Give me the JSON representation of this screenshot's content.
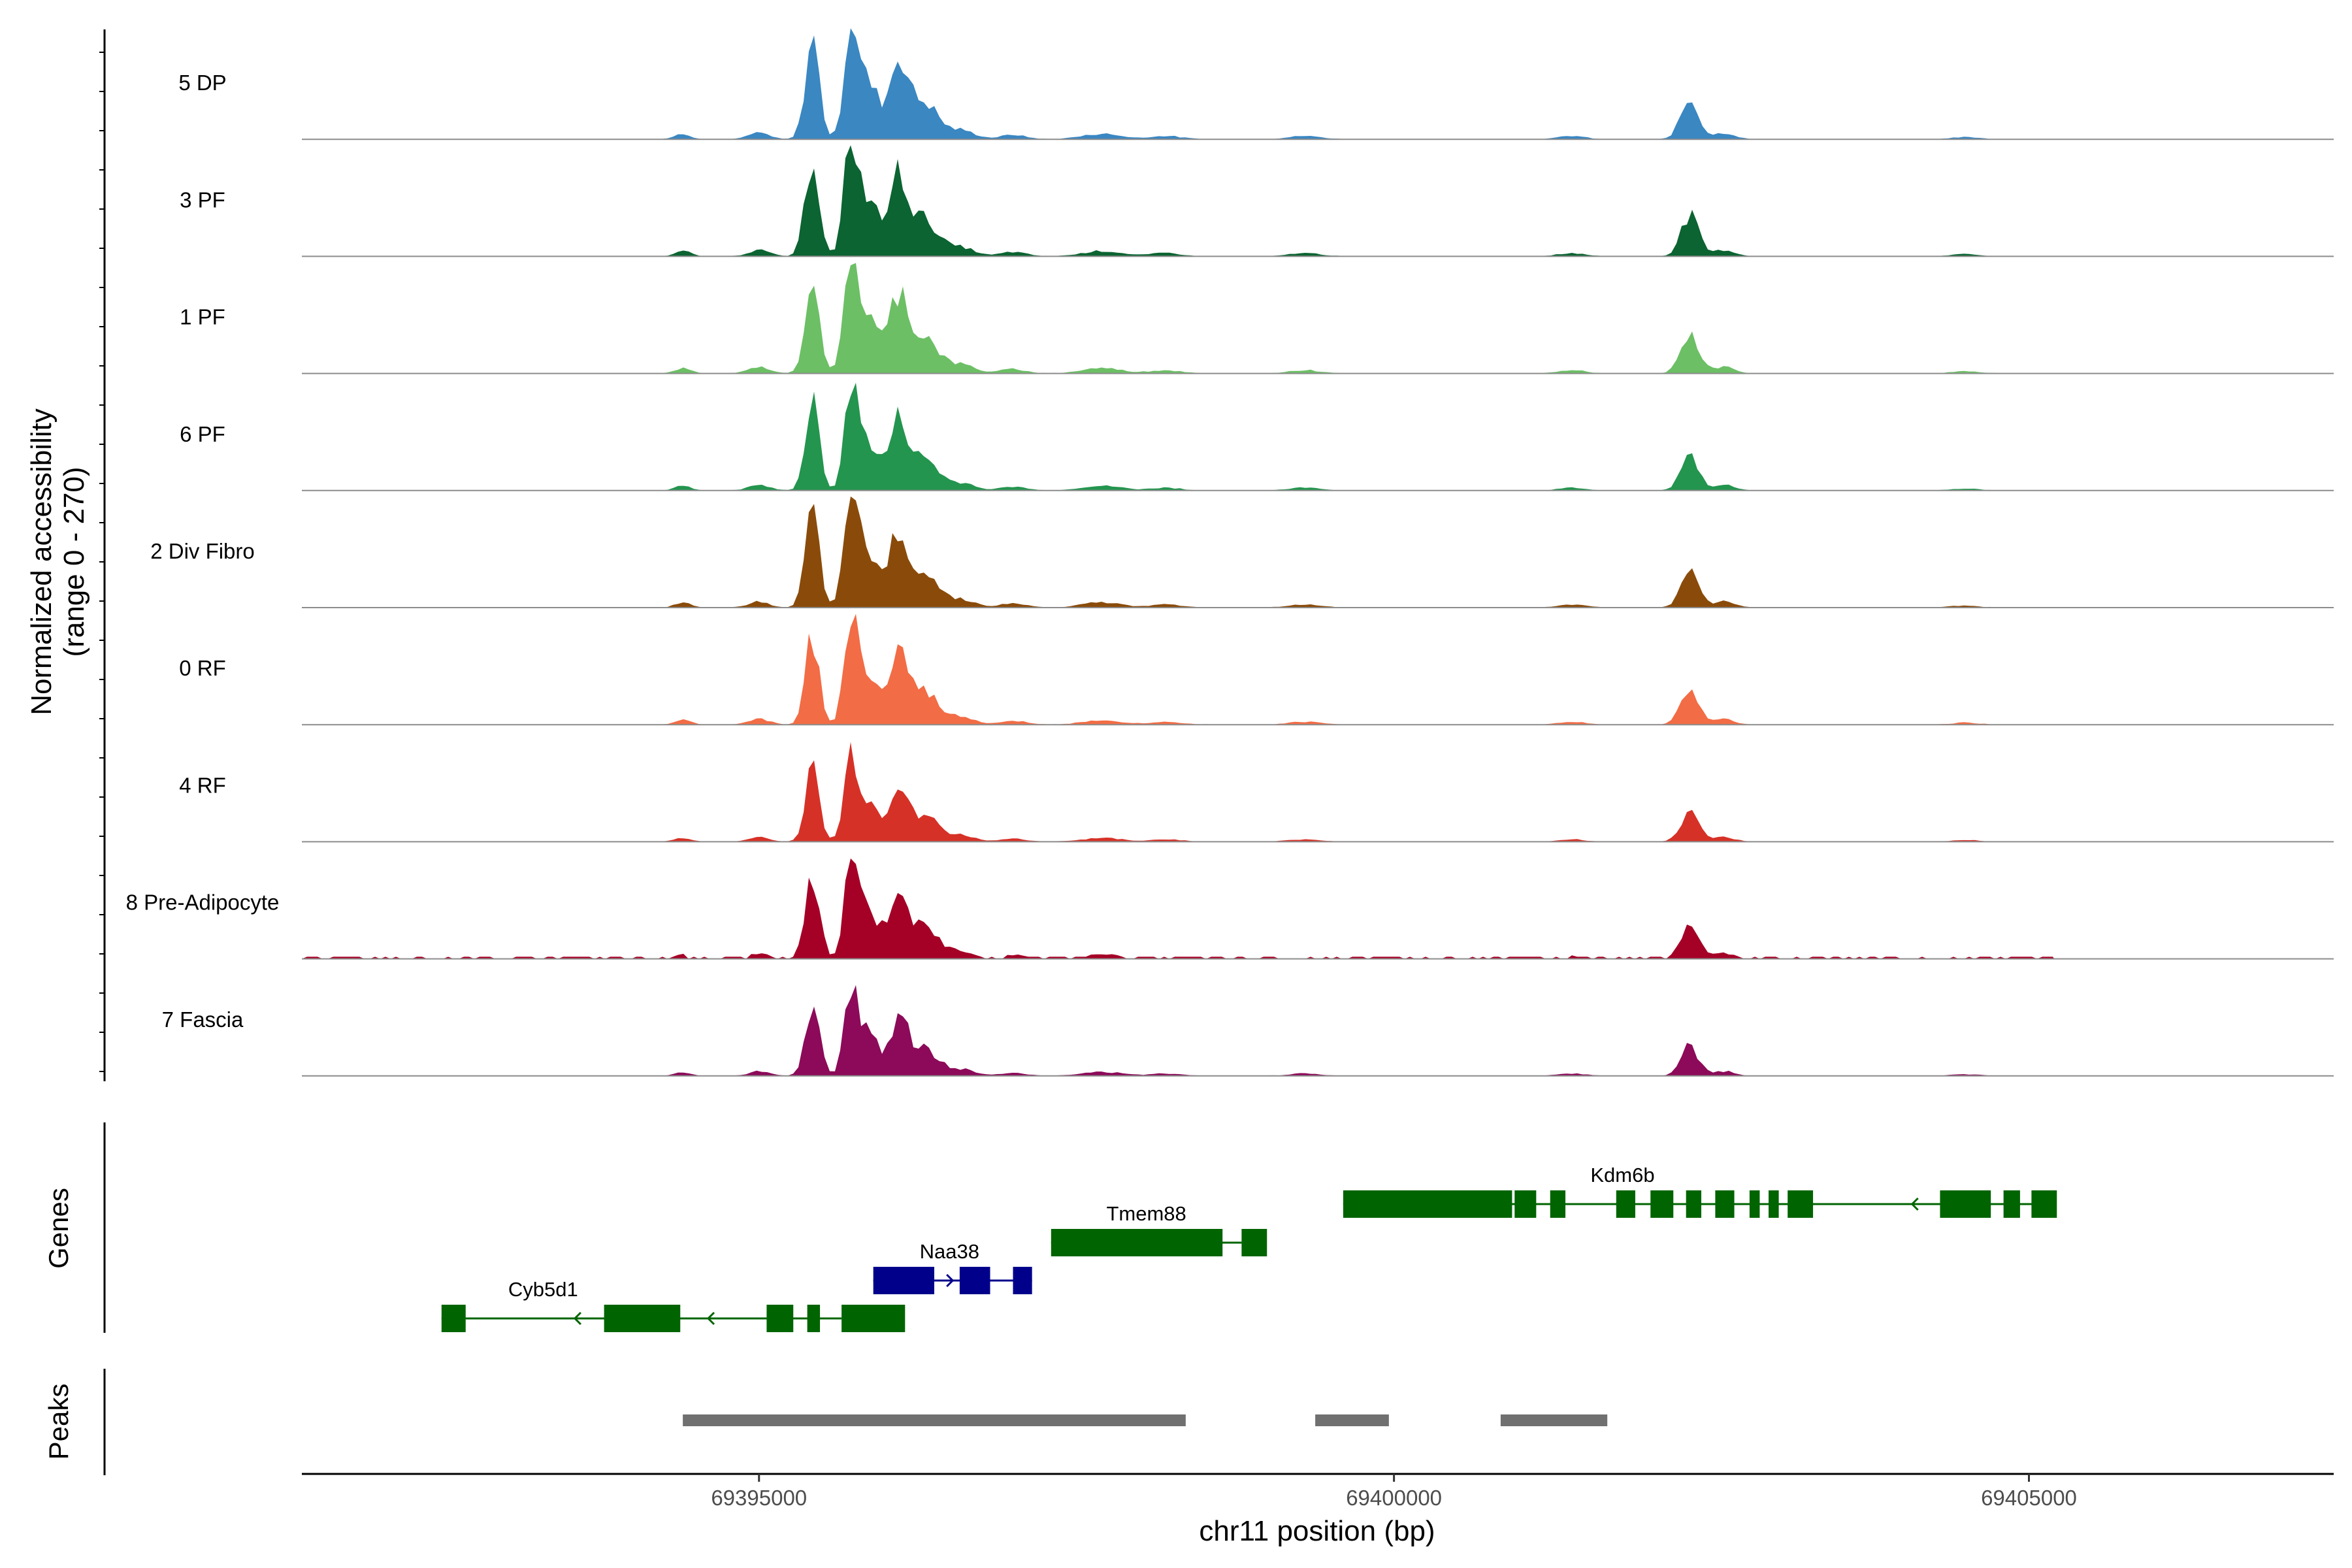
{
  "chart_data": {
    "type": "area",
    "chromosome": "chr11",
    "xlabel": "chr11 position (bp)",
    "ylabel": "Normalized accessibility",
    "ylabel_range": "(range 0 - 270)",
    "ylim": [
      0,
      270
    ],
    "xlim": [
      69391400,
      69407400
    ],
    "x_ticks": [
      69395000,
      69400000,
      69405000
    ],
    "x_tick_labels": [
      "69395000",
      "69400000",
      "69405000"
    ],
    "region": [
      69391400,
      69405200
    ],
    "tracks": [
      {
        "name": "5 DP",
        "color": "#3a87c2",
        "scale": 1.0,
        "clip": false
      },
      {
        "name": "3 PF",
        "color": "#0b6431",
        "scale": 1.0,
        "clip": false
      },
      {
        "name": "1 PF",
        "color": "#6cbf65",
        "scale": 1.0,
        "clip": false
      },
      {
        "name": "6 PF",
        "color": "#23954e",
        "scale": 0.85,
        "clip": false
      },
      {
        "name": "2 Div Fibro",
        "color": "#8a4b0a",
        "scale": 0.95,
        "clip": false
      },
      {
        "name": "0 RF",
        "color": "#f26c45",
        "scale": 0.88,
        "clip": false
      },
      {
        "name": "4 RF",
        "color": "#d63127",
        "scale": 0.7,
        "clip": false
      },
      {
        "name": "8 Pre-Adipocyte",
        "color": "#a50026",
        "scale": 0.85,
        "clip": true
      },
      {
        "name": "7 Fascia",
        "color": "#8c0a59",
        "scale": 0.72,
        "clip": false
      }
    ],
    "peaks_profile": [
      {
        "center": 69394400,
        "width": 60,
        "height": 0.05
      },
      {
        "center": 69395000,
        "width": 80,
        "height": 0.06
      },
      {
        "center": 69395420,
        "width": 55,
        "height": 0.95
      },
      {
        "center": 69395720,
        "width": 50,
        "height": 1.0
      },
      {
        "center": 69395850,
        "width": 90,
        "height": 0.55
      },
      {
        "center": 69396100,
        "width": 70,
        "height": 0.72
      },
      {
        "center": 69396300,
        "width": 110,
        "height": 0.35
      },
      {
        "center": 69396600,
        "width": 100,
        "height": 0.08
      },
      {
        "center": 69397000,
        "width": 100,
        "height": 0.04
      },
      {
        "center": 69397700,
        "width": 150,
        "height": 0.05
      },
      {
        "center": 69398200,
        "width": 120,
        "height": 0.03
      },
      {
        "center": 69399300,
        "width": 120,
        "height": 0.03
      },
      {
        "center": 69401400,
        "width": 100,
        "height": 0.03
      },
      {
        "center": 69402330,
        "width": 70,
        "height": 0.38
      },
      {
        "center": 69402600,
        "width": 80,
        "height": 0.06
      },
      {
        "center": 69404500,
        "width": 100,
        "height": 0.02
      }
    ],
    "genes": [
      {
        "name": "Cyb5d1",
        "strand": "-",
        "start": 69392500,
        "end": 69395650,
        "row": 0,
        "color": "#006400",
        "label_at": 69393300,
        "exons": [
          [
            69392500,
            69392690
          ],
          [
            69393780,
            69394380
          ],
          [
            69395060,
            69395270
          ],
          [
            69395380,
            69395480
          ],
          [
            69395650,
            69396150
          ]
        ]
      },
      {
        "name": "Naa38",
        "strand": "+",
        "start": 69395900,
        "end": 69397150,
        "row": 1,
        "color": "#00008b",
        "label_at": 69396500,
        "exons": [
          [
            69395900,
            69396380
          ],
          [
            69396580,
            69396820
          ],
          [
            69397000,
            69397150
          ]
        ]
      },
      {
        "name": "Tmem88",
        "strand": "-",
        "start": 69397300,
        "end": 69398800,
        "row": 2,
        "color": "#006400",
        "label_at": 69398050,
        "exons": [
          [
            69397300,
            69398650
          ],
          [
            69398800,
            69399000
          ]
        ]
      },
      {
        "name": "Kdm6b",
        "strand": "-",
        "start": 69399600,
        "end": 69405200,
        "row": 3,
        "color": "#006400",
        "label_at": 69401800,
        "exons": [
          [
            69399600,
            69400930
          ],
          [
            69400950,
            69401120
          ],
          [
            69401230,
            69401350
          ],
          [
            69401750,
            69401900
          ],
          [
            69402020,
            69402200
          ],
          [
            69402300,
            69402420
          ],
          [
            69402530,
            69402680
          ],
          [
            69402800,
            69402880
          ],
          [
            69402950,
            69403030
          ],
          [
            69403100,
            69403300
          ],
          [
            69404300,
            69404700
          ],
          [
            69404800,
            69404930
          ],
          [
            69405020,
            69405220
          ]
        ]
      }
    ],
    "peak_regions": [
      [
        69394400,
        69398360
      ],
      [
        69399380,
        69399960
      ],
      [
        69400840,
        69401680
      ]
    ]
  },
  "labels": {
    "genes_title": "Genes",
    "peaks_title": "Peaks"
  }
}
